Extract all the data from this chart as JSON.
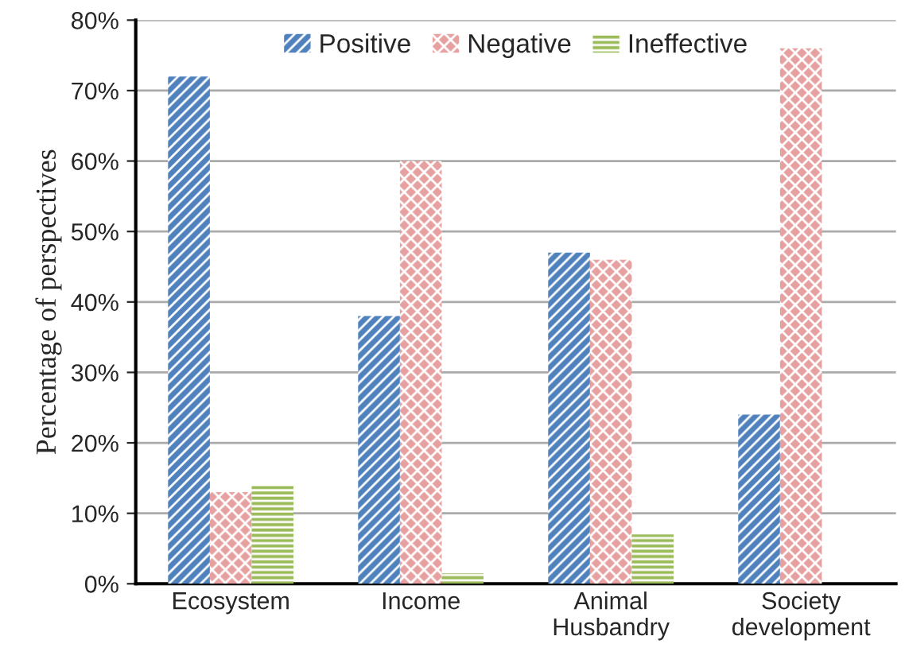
{
  "chart_data": {
    "type": "bar",
    "ylabel": "Percentage of perspectives",
    "categories": [
      "Ecosystem",
      "Income",
      "Animal\nHusbandry",
      "Society\ndevelopment"
    ],
    "series": [
      {
        "name": "Positive",
        "color": "#4f81bd",
        "values": [
          72,
          38,
          47,
          24
        ]
      },
      {
        "name": "Negative",
        "color": "#e6a0a0",
        "values": [
          13,
          60,
          46,
          76
        ]
      },
      {
        "name": "Ineffective",
        "color": "#9bbb59",
        "values": [
          14,
          1.5,
          7,
          null
        ]
      }
    ],
    "ylim": [
      0,
      80
    ],
    "yticks": [
      {
        "value": 0,
        "label": "0%"
      },
      {
        "value": 10,
        "label": "10%"
      },
      {
        "value": 20,
        "label": "20%"
      },
      {
        "value": 30,
        "label": "30%"
      },
      {
        "value": 40,
        "label": "40%"
      },
      {
        "value": 50,
        "label": "50%"
      },
      {
        "value": 60,
        "label": "60%"
      },
      {
        "value": 70,
        "label": "70%"
      },
      {
        "value": 80,
        "label": "80%"
      }
    ],
    "grid": "y",
    "legend": "top"
  }
}
